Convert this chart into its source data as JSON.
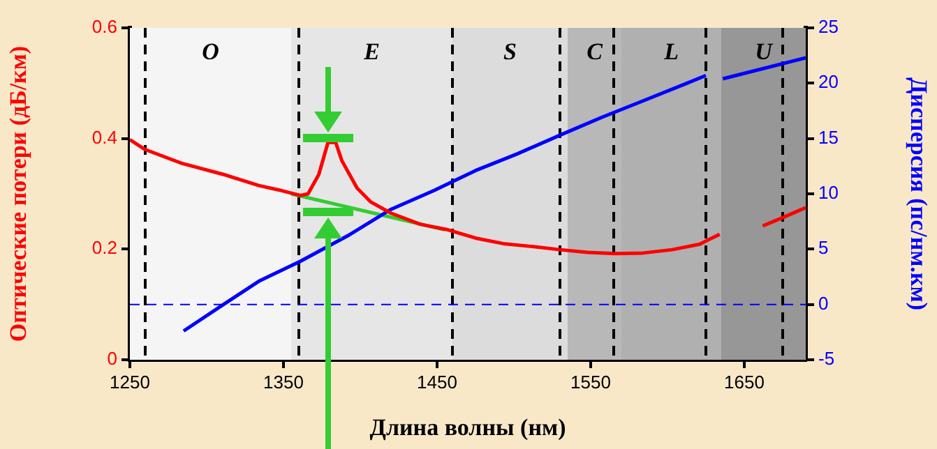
{
  "chart_data": {
    "type": "line",
    "xlabel": "Длина волны (нм)",
    "ylabel": "Оптические потери (дБ/км)",
    "y2label": "Дисперсия (пс/нм.км)",
    "xlim": [
      1250,
      1690
    ],
    "xticks": [
      1250,
      1350,
      1450,
      1550,
      1650
    ],
    "ylim": [
      0,
      0.6
    ],
    "yticks": [
      0,
      0.2,
      0.4,
      0.6
    ],
    "y2lim": [
      -5,
      25
    ],
    "y2ticks": [
      -5,
      0,
      5,
      10,
      15,
      20,
      25
    ],
    "grid": false,
    "legend": false,
    "marker": "none",
    "line_style": "solid",
    "series": [
      {
        "color": "#ff0000",
        "x": [
          1250,
          1260,
          1284,
          1311,
          1334,
          1347,
          1361,
          1366,
          1373,
          1379,
          1384,
          1388,
          1398,
          1407,
          1420,
          1439,
          1457,
          1475,
          1493,
          1511,
          1530,
          1548,
          1566,
          1584,
          1603,
          1621,
          1634,
          1655,
          1662,
          1675,
          1690
        ],
        "values": [
          0.398,
          0.38,
          0.355,
          0.335,
          0.315,
          0.307,
          0.297,
          0.3,
          0.335,
          0.393,
          0.393,
          0.36,
          0.31,
          0.285,
          0.265,
          0.245,
          0.235,
          0.22,
          0.21,
          0.205,
          0.199,
          0.194,
          0.192,
          0.193,
          0.199,
          0.209,
          0.227,
          null,
          0.242,
          0.257,
          0.275
        ]
      },
      {
        "color": "#0000ff",
        "axis": "y2",
        "x": [
          1285,
          1311,
          1334,
          1361,
          1393,
          1420,
          1448,
          1475,
          1502,
          1530,
          1557,
          1584,
          1611,
          1625,
          1630,
          1636,
          1690
        ],
        "values": [
          -2.4,
          0,
          2.1,
          3.9,
          6.3,
          8.6,
          10.3,
          12.1,
          13.6,
          15.3,
          16.9,
          18.4,
          19.9,
          20.7,
          null,
          20.4,
          22.3
        ]
      },
      {
        "color": "#33cc33",
        "x": [
          1355,
          1455
        ],
        "values": [
          0.3,
          0.235
        ]
      }
    ],
    "ref_lines": [
      {
        "axis": "x",
        "value": 1260,
        "color": "#000000",
        "line_style": "dashed"
      },
      {
        "axis": "x",
        "value": 1360,
        "color": "#000000",
        "line_style": "dashed"
      },
      {
        "axis": "x",
        "value": 1460,
        "color": "#000000",
        "line_style": "dashed"
      },
      {
        "axis": "x",
        "value": 1530,
        "color": "#000000",
        "line_style": "dashed"
      },
      {
        "axis": "x",
        "value": 1565,
        "color": "#000000",
        "line_style": "dashed"
      },
      {
        "axis": "x",
        "value": 1625,
        "color": "#000000",
        "line_style": "dashed"
      },
      {
        "axis": "x",
        "value": 1675,
        "color": "#000000",
        "line_style": "dashed"
      },
      {
        "axis": "y2",
        "value": 0,
        "color": "#0000ff",
        "line_style": "dashed"
      }
    ],
    "bands": [
      {
        "axis": "x",
        "from": 1250,
        "to": 1355,
        "label": "O",
        "color": "#f5f5f5"
      },
      {
        "axis": "x",
        "from": 1355,
        "to": 1460,
        "label": "E",
        "color": "#e6e6e6"
      },
      {
        "axis": "x",
        "from": 1460,
        "to": 1535,
        "label": "S",
        "color": "#dcdcdc"
      },
      {
        "axis": "x",
        "from": 1535,
        "to": 1570,
        "label": "C",
        "color": "#b8b8b8"
      },
      {
        "axis": "x",
        "from": 1570,
        "to": 1635,
        "label": "L",
        "color": "#b0b0b0"
      },
      {
        "axis": "x",
        "from": 1635,
        "to": 1690,
        "label": "U",
        "color": "#979797"
      }
    ]
  }
}
